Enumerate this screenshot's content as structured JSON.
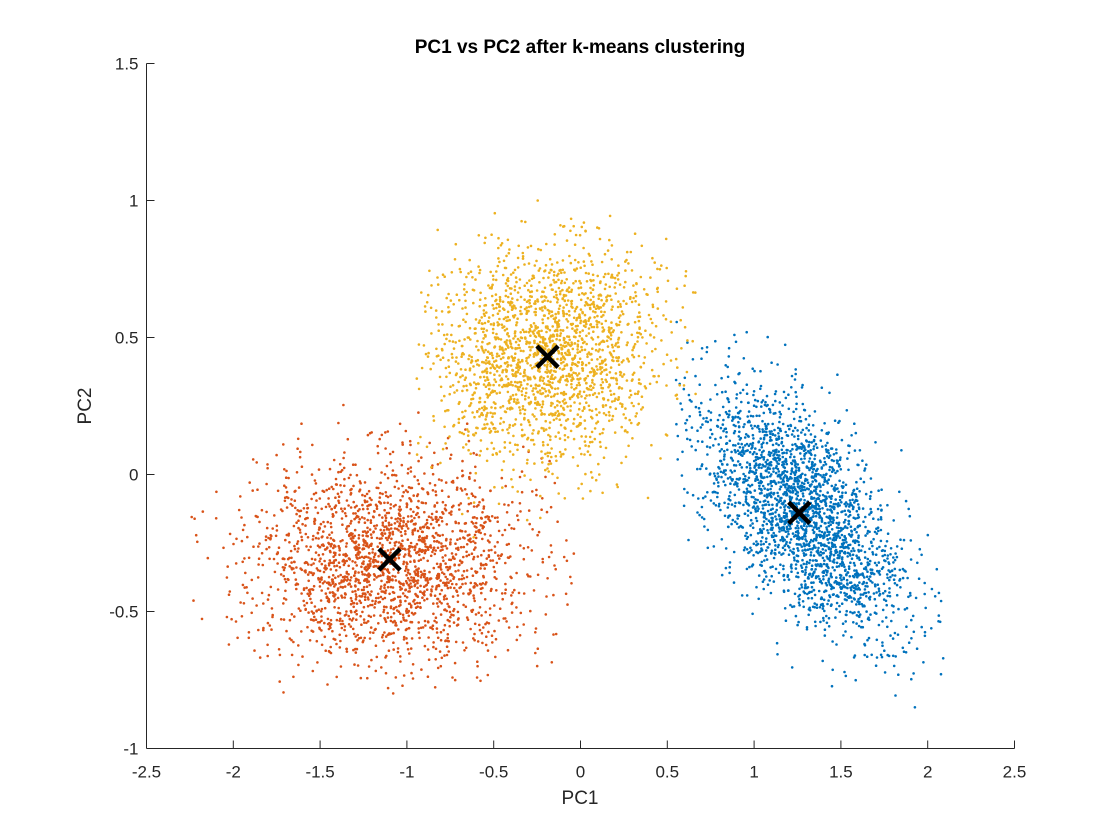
{
  "chart_data": {
    "type": "scatter",
    "title": "PC1 vs PC2 after k-means clustering",
    "xlabel": "PC1",
    "ylabel": "PC2",
    "xlim": [
      -2.5,
      2.5
    ],
    "ylim": [
      -1,
      1.5
    ],
    "xticks": [
      "-2.5",
      "-2",
      "-1.5",
      "-1",
      "-0.5",
      "0",
      "0.5",
      "1",
      "1.5",
      "2",
      "2.5"
    ],
    "yticks": [
      "-1",
      "-0.5",
      "0",
      "0.5",
      "1",
      "1.5"
    ],
    "grid": false,
    "legend": "none",
    "series": [
      {
        "color": "#0072BD",
        "marker": "dot",
        "center": [
          1.28,
          -0.14
        ],
        "spread": [
          0.3,
          0.23
        ],
        "correlation": -0.62,
        "x_range": [
          0.55,
          2.1
        ],
        "y_range": [
          -0.9,
          0.67
        ],
        "count": 2400
      },
      {
        "color": "#D95319",
        "marker": "dot",
        "center": [
          -1.1,
          -0.31
        ],
        "spread": [
          0.4,
          0.18
        ],
        "correlation": 0.0,
        "x_range": [
          -2.25,
          0.0
        ],
        "y_range": [
          -0.8,
          0.55
        ],
        "count": 2100
      },
      {
        "color": "#EDB120",
        "marker": "dot",
        "center": [
          -0.2,
          0.43
        ],
        "spread": [
          0.33,
          0.2
        ],
        "correlation": 0.1,
        "x_range": [
          -0.95,
          0.7
        ],
        "y_range": [
          -0.55,
          1.0
        ],
        "count": 2000
      }
    ],
    "centroids": {
      "marker": "x",
      "color": "#000000",
      "points": [
        {
          "x": -0.19,
          "y": 0.43
        },
        {
          "x": -1.1,
          "y": -0.31
        },
        {
          "x": 1.26,
          "y": -0.14
        }
      ]
    }
  }
}
